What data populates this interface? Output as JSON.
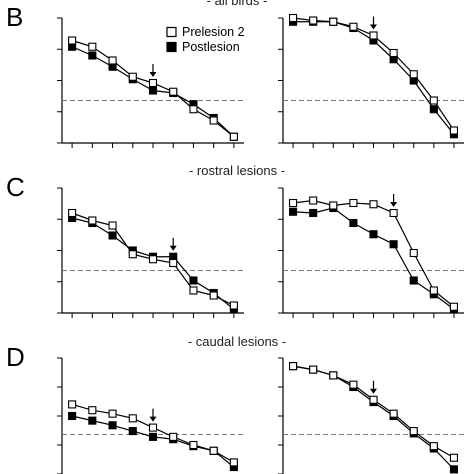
{
  "figure": {
    "x": [
      1,
      2,
      3,
      4,
      5,
      6,
      7,
      8,
      9
    ],
    "ylim": [
      0,
      1
    ],
    "threshold": 0.34,
    "legend": {
      "placement": "top-center",
      "entries": [
        "Prelesion 2",
        "Postlesion"
      ]
    },
    "colors": {
      "prelesion": "#ffffff",
      "postlesion": "#000000",
      "line": "#000000",
      "threshold": "#777777"
    }
  },
  "rows": [
    {
      "letter": "B",
      "title": "- all birds -"
    },
    {
      "letter": "C",
      "title": "- rostral lesions -"
    },
    {
      "letter": "D",
      "title": "- caudal lesions -"
    }
  ],
  "chart_data": [
    {
      "type": "line",
      "row": "B",
      "column": "left",
      "xlim": [
        0.5,
        9.5
      ],
      "ylim": [
        0,
        1
      ],
      "arrow_at": 5,
      "series": [
        {
          "name": "Prelesion 2",
          "marker": "open-square",
          "values": [
            0.82,
            0.77,
            0.66,
            0.53,
            0.48,
            0.41,
            0.27,
            0.18,
            0.05
          ]
        },
        {
          "name": "Postlesion",
          "marker": "filled-square",
          "values": [
            0.77,
            0.7,
            0.61,
            0.51,
            0.42,
            0.4,
            0.31,
            0.2,
            0.05
          ]
        }
      ]
    },
    {
      "type": "line",
      "row": "B",
      "column": "right",
      "xlim": [
        0.5,
        9.5
      ],
      "ylim": [
        0,
        1
      ],
      "arrow_at": 5,
      "series": [
        {
          "name": "Prelesion 2",
          "marker": "open-square",
          "values": [
            1.0,
            0.98,
            0.97,
            0.93,
            0.86,
            0.72,
            0.55,
            0.34,
            0.1
          ]
        },
        {
          "name": "Postlesion",
          "marker": "filled-square",
          "values": [
            0.97,
            0.97,
            0.97,
            0.92,
            0.82,
            0.67,
            0.5,
            0.27,
            0.07
          ]
        }
      ]
    },
    {
      "type": "line",
      "row": "C",
      "column": "left",
      "xlim": [
        0.5,
        9.5
      ],
      "ylim": [
        0,
        1
      ],
      "arrow_at": 6,
      "series": [
        {
          "name": "Prelesion 2",
          "marker": "open-square",
          "values": [
            0.8,
            0.74,
            0.7,
            0.47,
            0.43,
            0.4,
            0.18,
            0.14,
            0.06
          ]
        },
        {
          "name": "Postlesion",
          "marker": "filled-square",
          "values": [
            0.76,
            0.72,
            0.62,
            0.5,
            0.45,
            0.45,
            0.26,
            0.16,
            0.03
          ]
        }
      ]
    },
    {
      "type": "line",
      "row": "C",
      "column": "right",
      "xlim": [
        0.5,
        9.5
      ],
      "ylim": [
        0,
        1
      ],
      "arrow_at": 6,
      "series": [
        {
          "name": "Prelesion 2",
          "marker": "open-square",
          "values": [
            0.88,
            0.9,
            0.86,
            0.88,
            0.87,
            0.8,
            0.48,
            0.18,
            0.05
          ]
        },
        {
          "name": "Postlesion",
          "marker": "filled-square",
          "values": [
            0.81,
            0.8,
            0.84,
            0.72,
            0.63,
            0.55,
            0.26,
            0.15,
            0.03
          ]
        }
      ]
    },
    {
      "type": "line",
      "row": "D",
      "column": "left",
      "xlim": [
        0.5,
        9.5
      ],
      "ylim": [
        0,
        1
      ],
      "arrow_at": 5,
      "series": [
        {
          "name": "Prelesion 2",
          "marker": "open-square",
          "values": [
            0.6,
            0.55,
            0.52,
            0.48,
            0.4,
            0.32,
            0.25,
            0.2,
            0.1
          ]
        },
        {
          "name": "Postlesion",
          "marker": "filled-square",
          "values": [
            0.5,
            0.46,
            0.42,
            0.37,
            0.32,
            0.3,
            0.24,
            0.2,
            0.06
          ]
        }
      ]
    },
    {
      "type": "line",
      "row": "D",
      "column": "right",
      "xlim": [
        0.5,
        9.5
      ],
      "ylim": [
        0,
        1
      ],
      "arrow_at": 5,
      "series": [
        {
          "name": "Prelesion 2",
          "marker": "open-square",
          "values": [
            0.93,
            0.9,
            0.85,
            0.77,
            0.64,
            0.52,
            0.37,
            0.24,
            0.14
          ]
        },
        {
          "name": "Postlesion",
          "marker": "filled-square",
          "values": [
            0.93,
            0.9,
            0.85,
            0.75,
            0.62,
            0.5,
            0.35,
            0.22,
            0.04
          ]
        }
      ]
    }
  ]
}
